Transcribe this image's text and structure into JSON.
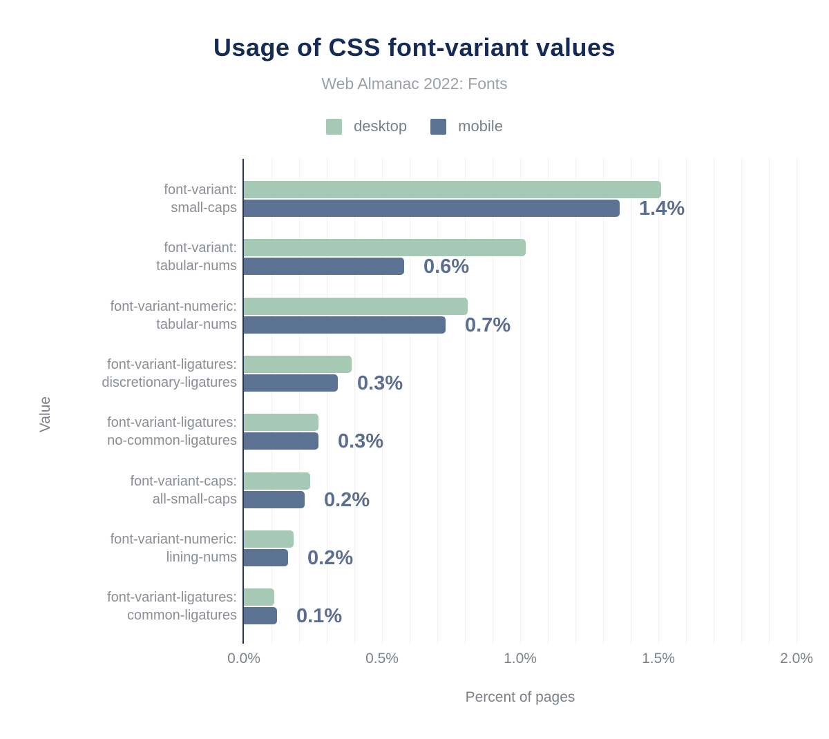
{
  "header": {
    "title": "Usage of CSS font-variant values",
    "subtitle": "Web Almanac 2022: Fonts"
  },
  "legend": [
    {
      "label": "desktop",
      "color": "#a6c9b6"
    },
    {
      "label": "mobile",
      "color": "#5b7292"
    }
  ],
  "chart_data": {
    "type": "bar",
    "orientation": "horizontal",
    "title": "Usage of CSS font-variant values",
    "subtitle": "Web Almanac 2022: Fonts",
    "xlabel": "Percent of pages",
    "ylabel": "Value",
    "xlim": [
      0,
      2
    ],
    "xtick_values": [
      0,
      0.5,
      1.0,
      1.5,
      2.0
    ],
    "xtick_labels": [
      "0.0%",
      "0.5%",
      "1.0%",
      "1.5%",
      "2.0%"
    ],
    "grid": "vertical, minor step 0.1%",
    "legend_position": "top",
    "categories": [
      [
        "font-variant:",
        "small-caps"
      ],
      [
        "font-variant:",
        "tabular-nums"
      ],
      [
        "font-variant-numeric:",
        "tabular-nums"
      ],
      [
        "font-variant-ligatures:",
        "discretionary-ligatures"
      ],
      [
        "font-variant-ligatures:",
        "no-common-ligatures"
      ],
      [
        "font-variant-caps:",
        "all-small-caps"
      ],
      [
        "font-variant-numeric:",
        "lining-nums"
      ],
      [
        "font-variant-ligatures:",
        "common-ligatures"
      ]
    ],
    "series": [
      {
        "name": "desktop",
        "color": "#a6c9b6",
        "values": [
          1.51,
          1.02,
          0.81,
          0.39,
          0.27,
          0.24,
          0.18,
          0.11
        ]
      },
      {
        "name": "mobile",
        "color": "#5b7292",
        "values": [
          1.36,
          0.58,
          0.73,
          0.34,
          0.27,
          0.22,
          0.16,
          0.12
        ]
      }
    ],
    "annotations": [
      "1.4%",
      "0.6%",
      "0.7%",
      "0.3%",
      "0.3%",
      "0.2%",
      "0.2%",
      "0.1%"
    ],
    "annotation_color": "#5b6e90",
    "axis_line_color": "#243452"
  }
}
